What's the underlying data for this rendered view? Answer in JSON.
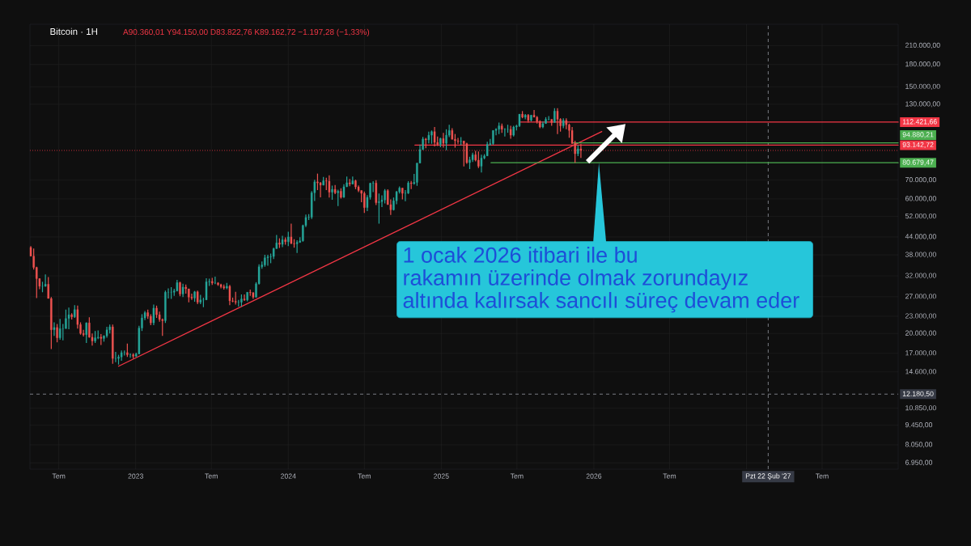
{
  "chart_data": {
    "type": "candlestick",
    "title": "Bitcoin · 1H",
    "subtitle": "A90.360,01 Y94.150,00 D83.822,76 K89.162,72 −1.197,28 (−1,33%)",
    "log": true,
    "grid": true,
    "xlim": [
      "2022-04-23",
      "2027-12-30"
    ],
    "ylim": [
      6600,
      250000
    ],
    "xticks": [
      {
        "value": "2022-07-01",
        "label": "Tem"
      },
      {
        "value": "2023",
        "label": "2023"
      },
      {
        "value": "2023-07-01",
        "label": "Tem"
      },
      {
        "value": "2024",
        "label": "2024"
      },
      {
        "value": "2024-07-01",
        "label": "Tem"
      },
      {
        "value": "2025",
        "label": "2025"
      },
      {
        "value": "2025-07-01",
        "label": "Tem"
      },
      {
        "value": "2026",
        "label": "2026"
      },
      {
        "value": "2026-07-01",
        "label": "Tem"
      },
      {
        "value": "2027",
        "label": null
      },
      {
        "value": "2027-07-01",
        "label": "Tem"
      }
    ],
    "yticks": [
      {
        "value": 210000,
        "label": "210.000,00"
      },
      {
        "value": 180000,
        "label": "180.000,00"
      },
      {
        "value": 150000,
        "label": "150.000,00"
      },
      {
        "value": 130000,
        "label": "130.000,00"
      },
      {
        "value": 70000,
        "label": "70.000,00"
      },
      {
        "value": 60000,
        "label": "60.000,00"
      },
      {
        "value": 52000,
        "label": "52.000,00"
      },
      {
        "value": 44000,
        "label": "44.000,00"
      },
      {
        "value": 38000,
        "label": "38.000,00"
      },
      {
        "value": 32000,
        "label": "32.000,00"
      },
      {
        "value": 27000,
        "label": "27.000,00"
      },
      {
        "value": 23000,
        "label": "23.000,00"
      },
      {
        "value": 20000,
        "label": "20.000,00"
      },
      {
        "value": 17000,
        "label": "17.000,00"
      },
      {
        "value": 14600,
        "label": "14.600,00"
      },
      {
        "value": 10850,
        "label": "10.850,00"
      },
      {
        "value": 9450,
        "label": "9.450,00"
      },
      {
        "value": 8050,
        "label": "8.050,00"
      },
      {
        "value": 6950,
        "label": "6.950,00"
      }
    ],
    "x": [
      "2022-04-25",
      "2022-05-02",
      "2022-05-09",
      "2022-05-16",
      "2022-05-23",
      "2022-05-30",
      "2022-06-06",
      "2022-06-13",
      "2022-06-20",
      "2022-06-27",
      "2022-07-04",
      "2022-07-11",
      "2022-07-18",
      "2022-07-25",
      "2022-08-01",
      "2022-08-08",
      "2022-08-15",
      "2022-08-22",
      "2022-08-29",
      "2022-09-05",
      "2022-09-12",
      "2022-09-19",
      "2022-09-26",
      "2022-10-03",
      "2022-10-10",
      "2022-10-17",
      "2022-10-24",
      "2022-10-31",
      "2022-11-07",
      "2022-11-14",
      "2022-11-21",
      "2022-11-28",
      "2022-12-05",
      "2022-12-12",
      "2022-12-19",
      "2022-12-26",
      "2023-01-02",
      "2023-01-09",
      "2023-01-16",
      "2023-01-23",
      "2023-01-30",
      "2023-02-06",
      "2023-02-13",
      "2023-02-20",
      "2023-02-27",
      "2023-03-06",
      "2023-03-13",
      "2023-03-20",
      "2023-03-27",
      "2023-04-03",
      "2023-04-10",
      "2023-04-17",
      "2023-04-24",
      "2023-05-01",
      "2023-05-08",
      "2023-05-15",
      "2023-05-22",
      "2023-05-29",
      "2023-06-05",
      "2023-06-12",
      "2023-06-19",
      "2023-06-26",
      "2023-07-03",
      "2023-07-10",
      "2023-07-17",
      "2023-07-24",
      "2023-07-31",
      "2023-08-07",
      "2023-08-14",
      "2023-08-21",
      "2023-08-28",
      "2023-09-04",
      "2023-09-11",
      "2023-09-18",
      "2023-09-25",
      "2023-10-02",
      "2023-10-09",
      "2023-10-16",
      "2023-10-23",
      "2023-10-30",
      "2023-11-06",
      "2023-11-13",
      "2023-11-20",
      "2023-11-27",
      "2023-12-04",
      "2023-12-11",
      "2023-12-18",
      "2023-12-25",
      "2024-01-01",
      "2024-01-08",
      "2024-01-15",
      "2024-01-22",
      "2024-01-29",
      "2024-02-05",
      "2024-02-12",
      "2024-02-19",
      "2024-02-26",
      "2024-03-04",
      "2024-03-11",
      "2024-03-18",
      "2024-03-25",
      "2024-04-01",
      "2024-04-08",
      "2024-04-15",
      "2024-04-22",
      "2024-04-29",
      "2024-05-06",
      "2024-05-13",
      "2024-05-20",
      "2024-05-27",
      "2024-06-03",
      "2024-06-10",
      "2024-06-17",
      "2024-06-24",
      "2024-07-01",
      "2024-07-08",
      "2024-07-15",
      "2024-07-22",
      "2024-07-29",
      "2024-08-05",
      "2024-08-12",
      "2024-08-19",
      "2024-08-26",
      "2024-09-02",
      "2024-09-09",
      "2024-09-16",
      "2024-09-23",
      "2024-09-30",
      "2024-10-07",
      "2024-10-14",
      "2024-10-21",
      "2024-10-28",
      "2024-11-04",
      "2024-11-11",
      "2024-11-18",
      "2024-11-25",
      "2024-12-02",
      "2024-12-09",
      "2024-12-16",
      "2024-12-23",
      "2024-12-30",
      "2025-01-06",
      "2025-01-13",
      "2025-01-20",
      "2025-01-27",
      "2025-02-03",
      "2025-02-10",
      "2025-02-17",
      "2025-02-24",
      "2025-03-03",
      "2025-03-10",
      "2025-03-17",
      "2025-03-24",
      "2025-03-31",
      "2025-04-07",
      "2025-04-14",
      "2025-04-21",
      "2025-04-28",
      "2025-05-05",
      "2025-05-12",
      "2025-05-19",
      "2025-05-26",
      "2025-06-02",
      "2025-06-09",
      "2025-06-16",
      "2025-06-23",
      "2025-06-30",
      "2025-07-07",
      "2025-07-14",
      "2025-07-21",
      "2025-07-28",
      "2025-08-04",
      "2025-08-11",
      "2025-08-18",
      "2025-08-25",
      "2025-09-01",
      "2025-09-08",
      "2025-09-15",
      "2025-09-22",
      "2025-09-29",
      "2025-10-06",
      "2025-10-13",
      "2025-10-20",
      "2025-10-27",
      "2025-11-03",
      "2025-11-10",
      "2025-11-17",
      "2025-11-24",
      "2025-12-01"
    ],
    "ohlc": [
      [
        40400,
        40800,
        37600,
        37600
      ],
      [
        37600,
        40000,
        33700,
        34300
      ],
      [
        34300,
        34500,
        26700,
        31300
      ],
      [
        31300,
        31400,
        28700,
        29400
      ],
      [
        29400,
        30500,
        28000,
        29400
      ],
      [
        29400,
        32400,
        29300,
        29900
      ],
      [
        29900,
        31700,
        26600,
        26600
      ],
      [
        26600,
        26900,
        17600,
        20600
      ],
      [
        20600,
        21900,
        19600,
        21000
      ],
      [
        21000,
        21600,
        18600,
        19300
      ],
      [
        19300,
        22500,
        19000,
        20800
      ],
      [
        20800,
        21600,
        18900,
        20800
      ],
      [
        20800,
        24300,
        20800,
        22600
      ],
      [
        22600,
        24700,
        20700,
        23300
      ],
      [
        23300,
        23600,
        22400,
        22900
      ],
      [
        22900,
        25200,
        22700,
        24300
      ],
      [
        24300,
        25100,
        20800,
        21500
      ],
      [
        21500,
        21900,
        19800,
        20000
      ],
      [
        20000,
        20600,
        19500,
        19800
      ],
      [
        19800,
        21900,
        18500,
        21800
      ],
      [
        21800,
        22800,
        19300,
        19400
      ],
      [
        19400,
        20000,
        18100,
        18800
      ],
      [
        18800,
        20400,
        18500,
        19300
      ],
      [
        19300,
        20500,
        19100,
        19400
      ],
      [
        19400,
        19900,
        18200,
        19200
      ],
      [
        19200,
        19700,
        18700,
        19600
      ],
      [
        19600,
        21100,
        19300,
        20600
      ],
      [
        20600,
        21500,
        20000,
        21100
      ],
      [
        21100,
        21500,
        15600,
        16300
      ],
      [
        16300,
        17200,
        15800,
        16300
      ],
      [
        16300,
        16800,
        15500,
        16500
      ],
      [
        16500,
        17400,
        16000,
        17100
      ],
      [
        17100,
        17400,
        16700,
        17100
      ],
      [
        17100,
        18400,
        16500,
        16800
      ],
      [
        16800,
        17000,
        16400,
        16800
      ],
      [
        16800,
        17000,
        16300,
        16600
      ],
      [
        16600,
        17100,
        16500,
        16900
      ],
      [
        16900,
        21300,
        16900,
        20900
      ],
      [
        20900,
        23400,
        20400,
        22700
      ],
      [
        22700,
        24000,
        22300,
        23700
      ],
      [
        23700,
        24300,
        22500,
        23000
      ],
      [
        23000,
        23400,
        21400,
        21800
      ],
      [
        21800,
        25300,
        21400,
        24600
      ],
      [
        24600,
        25100,
        22700,
        23300
      ],
      [
        23300,
        23900,
        22000,
        22400
      ],
      [
        22400,
        22600,
        19600,
        22200
      ],
      [
        22200,
        28400,
        21800,
        28000
      ],
      [
        28000,
        28900,
        26600,
        28000
      ],
      [
        28000,
        29200,
        26500,
        28000
      ],
      [
        28000,
        28800,
        27200,
        28300
      ],
      [
        28300,
        31000,
        28200,
        30300
      ],
      [
        30300,
        30500,
        27100,
        27600
      ],
      [
        27600,
        30000,
        26900,
        29200
      ],
      [
        29200,
        29800,
        27700,
        28800
      ],
      [
        28800,
        28800,
        25800,
        26900
      ],
      [
        26900,
        27700,
        26300,
        26700
      ],
      [
        26700,
        28300,
        25900,
        28100
      ],
      [
        28100,
        28400,
        25400,
        25800
      ],
      [
        25800,
        27400,
        25400,
        26300
      ],
      [
        26300,
        26800,
        24800,
        26300
      ],
      [
        26300,
        31400,
        26300,
        30500
      ],
      [
        30500,
        31300,
        29500,
        30600
      ],
      [
        30600,
        31500,
        29700,
        30200
      ],
      [
        30200,
        31800,
        29900,
        30200
      ],
      [
        30200,
        30400,
        29500,
        29800
      ],
      [
        29800,
        30000,
        28900,
        29300
      ],
      [
        29300,
        29800,
        28600,
        29000
      ],
      [
        29000,
        30200,
        28700,
        29400
      ],
      [
        29400,
        29700,
        25200,
        26100
      ],
      [
        26100,
        26800,
        25800,
        26000
      ],
      [
        26000,
        28100,
        25300,
        25800
      ],
      [
        25800,
        26300,
        24900,
        25800
      ],
      [
        25800,
        27500,
        24900,
        26500
      ],
      [
        26500,
        27500,
        26100,
        26300
      ],
      [
        26300,
        28000,
        26000,
        28000
      ],
      [
        28000,
        28600,
        27200,
        27900
      ],
      [
        27900,
        28000,
        26500,
        26900
      ],
      [
        26900,
        30400,
        26800,
        30000
      ],
      [
        30000,
        35200,
        29800,
        34500
      ],
      [
        34500,
        36000,
        33900,
        35000
      ],
      [
        35000,
        38000,
        34500,
        37100
      ],
      [
        37100,
        38000,
        34800,
        37400
      ],
      [
        37400,
        38400,
        35500,
        37500
      ],
      [
        37500,
        40300,
        36700,
        40000
      ],
      [
        40000,
        44700,
        39900,
        41900
      ],
      [
        41900,
        43500,
        40200,
        41400
      ],
      [
        41400,
        44400,
        40500,
        43000
      ],
      [
        43000,
        43800,
        41300,
        42300
      ],
      [
        42300,
        45900,
        40800,
        44000
      ],
      [
        44000,
        49000,
        41500,
        41700
      ],
      [
        41700,
        43200,
        40300,
        41600
      ],
      [
        41600,
        42800,
        38600,
        42100
      ],
      [
        42100,
        43900,
        41900,
        42600
      ],
      [
        42600,
        48600,
        42300,
        48300
      ],
      [
        48300,
        52800,
        47700,
        51600
      ],
      [
        51600,
        53000,
        50500,
        51700
      ],
      [
        51700,
        64000,
        50900,
        63100
      ],
      [
        63100,
        70200,
        59000,
        69000
      ],
      [
        69000,
        73800,
        64500,
        68400
      ],
      [
        68400,
        68900,
        60800,
        67200
      ],
      [
        67200,
        71800,
        67000,
        69600
      ],
      [
        69600,
        71300,
        64500,
        69400
      ],
      [
        69400,
        72800,
        60700,
        63400
      ],
      [
        63400,
        66900,
        59600,
        64900
      ],
      [
        64900,
        67200,
        62400,
        63100
      ],
      [
        63100,
        64700,
        56600,
        63900
      ],
      [
        63900,
        65500,
        60200,
        60800
      ],
      [
        60800,
        67700,
        60600,
        66300
      ],
      [
        66300,
        72000,
        66100,
        68500
      ],
      [
        68500,
        70600,
        66600,
        67800
      ],
      [
        67800,
        72000,
        67600,
        69600
      ],
      [
        69600,
        70200,
        65000,
        66200
      ],
      [
        66200,
        67000,
        63400,
        64300
      ],
      [
        64300,
        64300,
        58400,
        62800
      ],
      [
        62800,
        63800,
        53500,
        55900
      ],
      [
        55900,
        61900,
        54300,
        60800
      ],
      [
        60800,
        68500,
        59700,
        68200
      ],
      [
        68200,
        69400,
        63400,
        68300
      ],
      [
        68300,
        70000,
        57100,
        58200
      ],
      [
        58200,
        62700,
        49000,
        58700
      ],
      [
        58700,
        61800,
        56100,
        59500
      ],
      [
        59500,
        65000,
        57800,
        64200
      ],
      [
        64200,
        64900,
        57200,
        57300
      ],
      [
        57300,
        59800,
        52600,
        54900
      ],
      [
        54900,
        60700,
        54600,
        59100
      ],
      [
        59100,
        64100,
        57500,
        63600
      ],
      [
        63600,
        66500,
        62700,
        65600
      ],
      [
        65600,
        65600,
        59800,
        62800
      ],
      [
        62800,
        64500,
        58900,
        62900
      ],
      [
        62900,
        69400,
        62500,
        68400
      ],
      [
        68400,
        69500,
        65000,
        68000
      ],
      [
        68000,
        73600,
        67500,
        68700
      ],
      [
        68700,
        80500,
        66800,
        80400
      ],
      [
        80400,
        93500,
        80300,
        89900
      ],
      [
        89900,
        99600,
        89400,
        97900
      ],
      [
        97900,
        98700,
        90800,
        97200
      ],
      [
        97200,
        104000,
        94500,
        101000
      ],
      [
        101000,
        105000,
        94200,
        104000
      ],
      [
        104000,
        108000,
        92100,
        95200
      ],
      [
        95200,
        99900,
        92500,
        93700
      ],
      [
        93700,
        99000,
        91500,
        98300
      ],
      [
        98300,
        103000,
        91200,
        94500
      ],
      [
        94500,
        106000,
        89300,
        101000
      ],
      [
        101000,
        110000,
        99500,
        105000
      ],
      [
        105000,
        107000,
        97500,
        97700
      ],
      [
        97700,
        102000,
        91200,
        96500
      ],
      [
        96500,
        98800,
        94100,
        96100
      ],
      [
        96100,
        99500,
        93300,
        96300
      ],
      [
        96300,
        96500,
        78200,
        94300
      ],
      [
        94300,
        95000,
        80000,
        80700
      ],
      [
        80700,
        84700,
        76600,
        82600
      ],
      [
        82600,
        87500,
        81200,
        86100
      ],
      [
        86100,
        88800,
        81600,
        82400
      ],
      [
        82400,
        88500,
        77200,
        78400
      ],
      [
        78400,
        86100,
        74500,
        83800
      ],
      [
        83800,
        86500,
        83000,
        85300
      ],
      [
        85300,
        95800,
        85100,
        93700
      ],
      [
        93700,
        97900,
        92800,
        94300
      ],
      [
        94300,
        105000,
        93400,
        105000
      ],
      [
        105000,
        107000,
        101000,
        106000
      ],
      [
        106000,
        112000,
        102000,
        109000
      ],
      [
        109000,
        111000,
        103000,
        106000
      ],
      [
        106000,
        107000,
        100000,
        106000
      ],
      [
        106000,
        110000,
        103000,
        106000
      ],
      [
        106000,
        109000,
        98200,
        101000
      ],
      [
        101000,
        109000,
        100000,
        108000
      ],
      [
        108000,
        110000,
        105000,
        109000
      ],
      [
        109000,
        120000,
        108000,
        120000
      ],
      [
        120000,
        123000,
        116000,
        117000
      ],
      [
        117000,
        120000,
        115000,
        119000
      ],
      [
        119000,
        120000,
        112000,
        114000
      ],
      [
        114000,
        119000,
        113000,
        119000
      ],
      [
        119000,
        124000,
        117000,
        117000
      ],
      [
        117000,
        118000,
        111000,
        113000
      ],
      [
        113000,
        114000,
        107000,
        108000
      ],
      [
        108000,
        113000,
        107000,
        111000
      ],
      [
        111000,
        117000,
        111000,
        115000
      ],
      [
        115000,
        118000,
        114000,
        115000
      ],
      [
        115000,
        115000,
        109000,
        112000
      ],
      [
        112000,
        126000,
        112000,
        123000
      ],
      [
        123000,
        126000,
        102000,
        115000
      ],
      [
        115000,
        116000,
        104000,
        109000
      ],
      [
        109000,
        116000,
        107000,
        114000
      ],
      [
        114000,
        116000,
        106000,
        110000
      ],
      [
        110000,
        111000,
        98900,
        105000
      ],
      [
        105000,
        108000,
        94000,
        94500
      ],
      [
        94500,
        96600,
        80600,
        86800
      ],
      [
        86800,
        93100,
        85200,
        90400
      ],
      [
        90360.01,
        94150,
        83822.76,
        89162.72
      ]
    ],
    "series": [
      {
        "type": "line",
        "color": "#f23645",
        "x": [
          "2022-11-21",
          "2026-01-20"
        ],
        "values": [
          15300,
          104000
        ]
      },
      {
        "type": "line",
        "color": "#f23645",
        "x": [
          "2025-07-07",
          "2027-12-30"
        ],
        "values": [
          112421.66,
          112421.66
        ],
        "value_labels": [
          null,
          "112.421,66"
        ]
      },
      {
        "type": "line",
        "color": "#4caf50",
        "x": [
          "2025-11-12",
          "2027-12-30"
        ],
        "values": [
          94880.21,
          94880.21
        ],
        "value_labels": [
          null,
          "94.880,21"
        ]
      },
      {
        "type": "line",
        "color": "#f23645",
        "x": [
          "2024-10-30",
          "2027-12-30"
        ],
        "values": [
          93142.72,
          93142.72
        ],
        "value_labels": [
          null,
          "93.142,72"
        ]
      },
      {
        "type": "line",
        "color": "#4caf50",
        "x": [
          "2025-04-30",
          "2027-12-30"
        ],
        "values": [
          80679.47,
          80679.47
        ],
        "value_labels": [
          null,
          "80.679,47"
        ]
      }
    ],
    "ref_lines": [
      {
        "axis": "y",
        "value": 89162.72,
        "color": "#f23645",
        "line_style": "dotted"
      },
      {
        "axis": "y",
        "value": 12180.5,
        "label": "12.180,50",
        "color": "#9598a1",
        "line_style": "dashed"
      },
      {
        "axis": "x",
        "value": "2027-02-22",
        "label": "Pzt 22 Şub '27",
        "color": "#9598a1",
        "line_style": "dashed"
      }
    ],
    "annotations": [
      {
        "text": "1 ocak 2026 itibari ile bu\nrakamın üzerinde olmak zorundayız\naltında kalırsak sancılı süreç devam eder",
        "x": "2026-01-13",
        "y": 80679.47
      }
    ]
  }
}
